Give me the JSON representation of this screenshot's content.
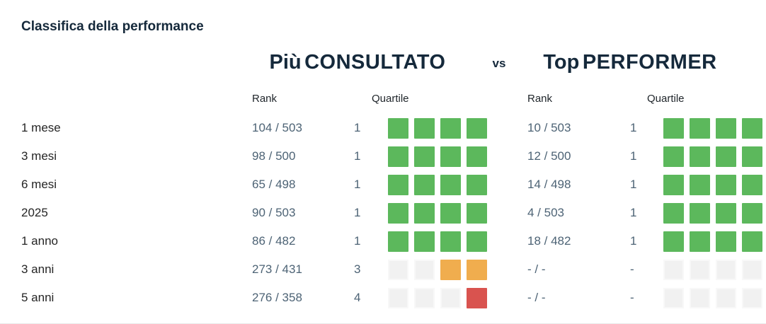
{
  "title": "Classifica della performance",
  "versus": {
    "left_accent": "Più",
    "left_rest": "CONSULTATO",
    "vs_label": "vs",
    "right_accent": "Top",
    "right_rest": "PERFORMER"
  },
  "columns": {
    "rank": "Rank",
    "quartile": "Quartile"
  },
  "colors": {
    "header_text": "#15293b",
    "value_text": "#4d6375",
    "quartile_1": "#5cb85c",
    "quartile_3": "#f0ad4e",
    "quartile_4": "#d9534f",
    "empty_square": "#f1f1f1"
  },
  "rows": [
    {
      "label": "1 mese",
      "left": {
        "rank": "104 / 503",
        "quartile": "1"
      },
      "right": {
        "rank": "10 / 503",
        "quartile": "1"
      }
    },
    {
      "label": "3 mesi",
      "left": {
        "rank": "98 / 500",
        "quartile": "1"
      },
      "right": {
        "rank": "12 / 500",
        "quartile": "1"
      }
    },
    {
      "label": "6 mesi",
      "left": {
        "rank": "65 / 498",
        "quartile": "1"
      },
      "right": {
        "rank": "14 / 498",
        "quartile": "1"
      }
    },
    {
      "label": "2025",
      "left": {
        "rank": "90 / 503",
        "quartile": "1"
      },
      "right": {
        "rank": "4 / 503",
        "quartile": "1"
      }
    },
    {
      "label": "1 anno",
      "left": {
        "rank": "86 / 482",
        "quartile": "1"
      },
      "right": {
        "rank": "18 / 482",
        "quartile": "1"
      }
    },
    {
      "label": "3 anni",
      "left": {
        "rank": "273 / 431",
        "quartile": "3"
      },
      "right": {
        "rank": "- / -",
        "quartile": "-"
      }
    },
    {
      "label": "5 anni",
      "left": {
        "rank": "276 / 358",
        "quartile": "4"
      },
      "right": {
        "rank": "- / -",
        "quartile": "-"
      }
    }
  ],
  "chart_data": {
    "type": "table",
    "title": "Classifica della performance",
    "groups": [
      "Più CONSULTATO",
      "Top PERFORMER"
    ],
    "columns": [
      "Rank",
      "Quartile"
    ],
    "periods": [
      "1 mese",
      "3 mesi",
      "6 mesi",
      "2025",
      "1 anno",
      "3 anni",
      "5 anni"
    ],
    "piu_consultato": {
      "rank": [
        "104 / 503",
        "98 / 500",
        "65 / 498",
        "90 / 503",
        "86 / 482",
        "273 / 431",
        "276 / 358"
      ],
      "quartile": [
        1,
        1,
        1,
        1,
        1,
        3,
        4
      ]
    },
    "top_performer": {
      "rank": [
        "10 / 503",
        "12 / 500",
        "14 / 498",
        "4 / 503",
        "18 / 482",
        "- / -",
        "- / -"
      ],
      "quartile": [
        1,
        1,
        1,
        1,
        1,
        null,
        null
      ]
    }
  }
}
